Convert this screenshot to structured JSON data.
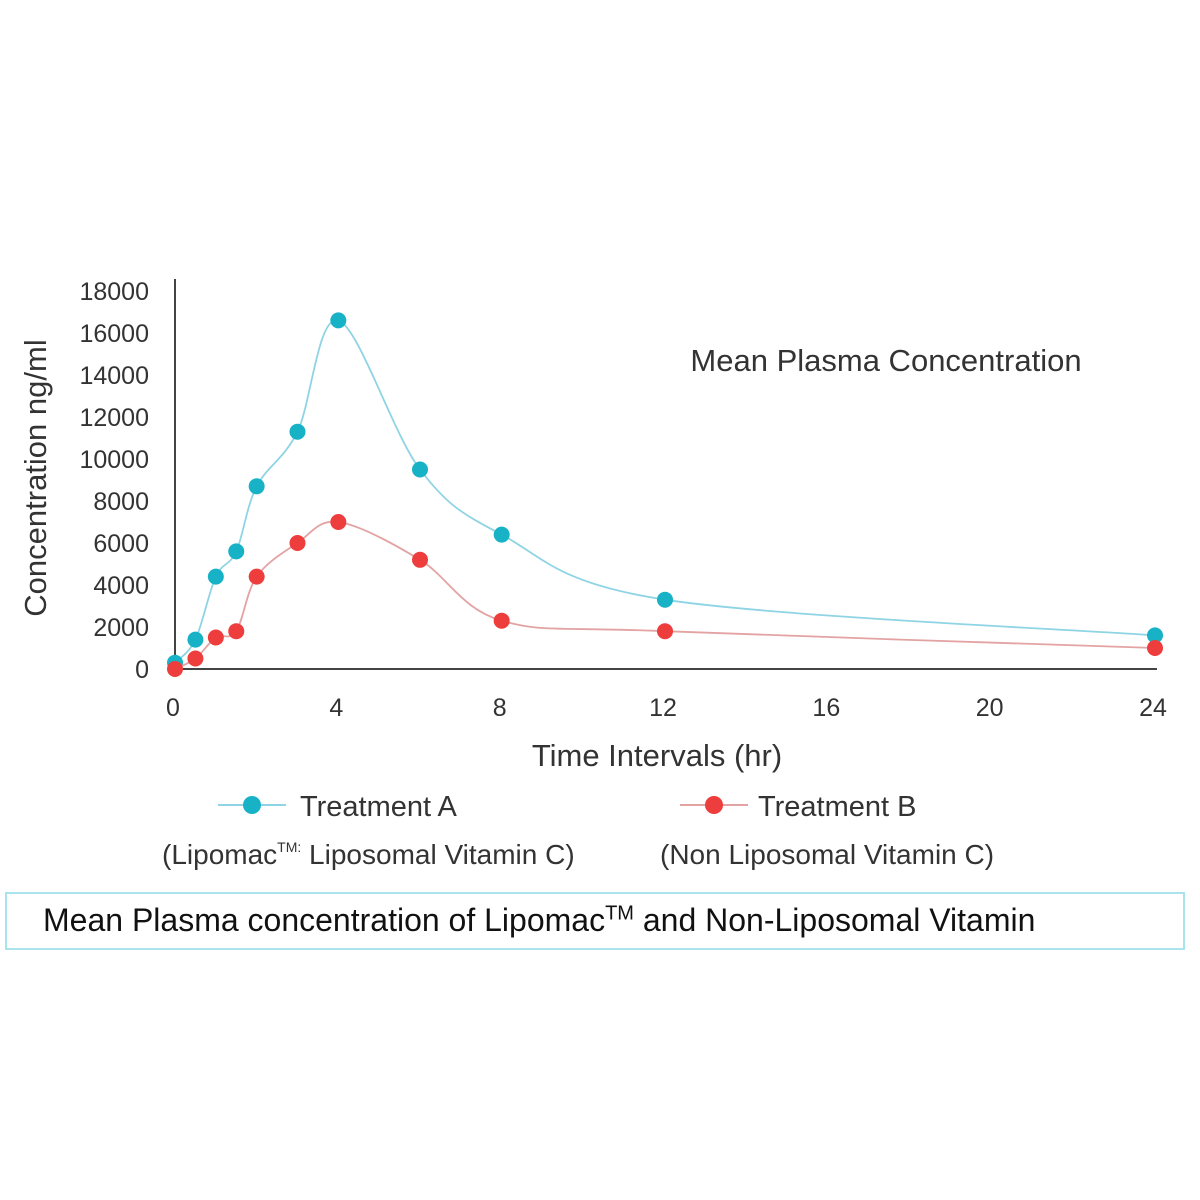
{
  "chart_data": {
    "type": "line",
    "title": "Mean Plasma Concentration",
    "xlabel": "Time Intervals (hr)",
    "ylabel": "Concentration ng/ml",
    "xlim": [
      0,
      24
    ],
    "ylim": [
      0,
      18000
    ],
    "xticks": [
      0,
      4,
      8,
      12,
      16,
      20,
      24
    ],
    "yticks": [
      0,
      2000,
      4000,
      6000,
      8000,
      10000,
      12000,
      14000,
      16000,
      18000
    ],
    "grid": false,
    "legend_position": "bottom",
    "series": [
      {
        "name": "Treatment A",
        "subtitle_pre": "(Lipomac",
        "subtitle_sup": "TM:",
        "subtitle_post": " Liposomal Vitamin C)",
        "marker_color": "#17b2c6",
        "line_color": "#8fd4e4",
        "x": [
          0,
          0.5,
          1,
          1.5,
          2,
          3,
          4,
          6,
          8,
          12,
          24
        ],
        "y": [
          300,
          1400,
          4400,
          5600,
          8700,
          11300,
          16600,
          9500,
          6400,
          3300,
          1600
        ]
      },
      {
        "name": "Treatment B",
        "subtitle_pre": "(Non Liposomal Vitamin C)",
        "subtitle_sup": "",
        "subtitle_post": "",
        "marker_color": "#ee3d3d",
        "line_color": "#e3a3a3",
        "x": [
          0,
          0.5,
          1,
          1.5,
          2,
          3,
          4,
          6,
          8,
          12,
          24
        ],
        "y": [
          0,
          500,
          1500,
          1800,
          4400,
          6000,
          7000,
          5200,
          2300,
          1800,
          1000
        ]
      }
    ]
  },
  "caption": {
    "pre": "Mean Plasma concentration of Lipomac",
    "sup": "TM",
    "post": " and Non-Liposomal Vitamin"
  }
}
